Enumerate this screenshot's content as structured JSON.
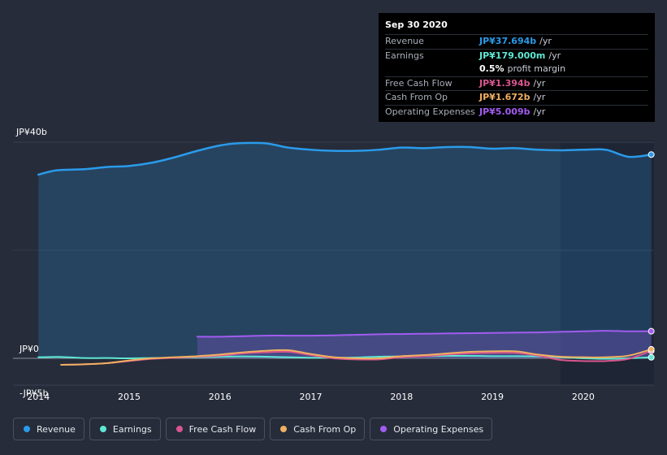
{
  "tooltip": {
    "date": "Sep 30 2020",
    "rows": [
      {
        "label": "Revenue",
        "value": "JP¥37.694b",
        "unit": "/yr",
        "color": "#2a9bea"
      },
      {
        "label": "Earnings",
        "value": "JP¥179.000m",
        "unit": "/yr",
        "color": "#5ee8d4"
      },
      {
        "label": "",
        "value": "0.5%",
        "unit": "profit margin",
        "color": "#ffffff"
      },
      {
        "label": "Free Cash Flow",
        "value": "JP¥1.394b",
        "unit": "/yr",
        "color": "#d9568f"
      },
      {
        "label": "Cash From Op",
        "value": "JP¥1.672b",
        "unit": "/yr",
        "color": "#f0b060"
      },
      {
        "label": "Operating Expenses",
        "value": "JP¥5.009b",
        "unit": "/yr",
        "color": "#a25cf0"
      }
    ]
  },
  "chart_data": {
    "type": "line",
    "title": "",
    "xlabel": "",
    "ylabel": "",
    "ylim": [
      -5,
      40
    ],
    "y_tick_labels": [
      "JP¥40b",
      "JP¥0",
      "-JP¥5b"
    ],
    "x_tick_labels": [
      "2014",
      "2015",
      "2016",
      "2017",
      "2018",
      "2019",
      "2020"
    ],
    "x_ticks": [
      2014,
      2015,
      2016,
      2017,
      2018,
      2019,
      2020
    ],
    "xlim": [
      2013.72,
      2020.78
    ],
    "forecast_start": 2019.75,
    "series": [
      {
        "name": "Revenue",
        "color": "#2a9bea",
        "fill": true,
        "x": [
          2014.0,
          2014.2,
          2014.5,
          2014.75,
          2015.0,
          2015.25,
          2015.5,
          2015.75,
          2016.0,
          2016.2,
          2016.5,
          2016.75,
          2017.0,
          2017.25,
          2017.5,
          2017.75,
          2018.0,
          2018.25,
          2018.5,
          2018.75,
          2019.0,
          2019.25,
          2019.5,
          2019.75,
          2020.0,
          2020.25,
          2020.5,
          2020.75
        ],
        "values": [
          34.0,
          34.8,
          35.0,
          35.4,
          35.6,
          36.2,
          37.2,
          38.4,
          39.4,
          39.8,
          39.8,
          39.0,
          38.6,
          38.4,
          38.4,
          38.6,
          39.0,
          38.9,
          39.1,
          39.1,
          38.8,
          38.9,
          38.6,
          38.5,
          38.6,
          38.6,
          37.3,
          37.7
        ]
      },
      {
        "name": "Earnings",
        "color": "#5ee8d4",
        "fill": false,
        "x": [
          2014.0,
          2014.25,
          2014.5,
          2014.75,
          2015.0,
          2015.25,
          2015.5,
          2015.75,
          2016.0,
          2016.25,
          2016.5,
          2016.75,
          2017.0,
          2017.25,
          2017.5,
          2017.75,
          2018.0,
          2018.25,
          2018.5,
          2018.75,
          2019.0,
          2019.25,
          2019.5,
          2019.75,
          2020.0,
          2020.25,
          2020.5,
          2020.75
        ],
        "values": [
          0.2,
          0.25,
          0.05,
          0.05,
          0.0,
          0.05,
          0.1,
          0.2,
          0.3,
          0.35,
          0.3,
          0.2,
          0.1,
          0.1,
          0.15,
          0.3,
          0.35,
          0.4,
          0.45,
          0.45,
          0.4,
          0.4,
          0.35,
          0.2,
          0.0,
          -0.1,
          0.0,
          0.18
        ]
      },
      {
        "name": "Free Cash Flow",
        "color": "#d9568f",
        "fill": false,
        "x": [
          2014.25,
          2014.5,
          2014.75,
          2015.0,
          2015.25,
          2015.5,
          2015.75,
          2016.0,
          2016.25,
          2016.5,
          2016.75,
          2017.0,
          2017.25,
          2017.5,
          2017.75,
          2018.0,
          2018.25,
          2018.5,
          2018.75,
          2019.0,
          2019.25,
          2019.5,
          2019.75,
          2020.0,
          2020.25,
          2020.5,
          2020.75
        ],
        "values": [
          -1.2,
          -1.1,
          -0.9,
          -0.5,
          -0.1,
          0.1,
          0.3,
          0.5,
          0.9,
          1.1,
          1.2,
          0.6,
          0.0,
          -0.2,
          -0.2,
          0.2,
          0.4,
          0.7,
          0.9,
          1.0,
          1.0,
          0.5,
          -0.3,
          -0.5,
          -0.5,
          -0.1,
          1.39
        ]
      },
      {
        "name": "Cash From Op",
        "color": "#f0b060",
        "fill": false,
        "x": [
          2014.25,
          2014.5,
          2014.75,
          2015.0,
          2015.25,
          2015.5,
          2015.75,
          2016.0,
          2016.25,
          2016.5,
          2016.75,
          2017.0,
          2017.25,
          2017.5,
          2017.75,
          2018.0,
          2018.25,
          2018.5,
          2018.75,
          2019.0,
          2019.25,
          2019.5,
          2019.75,
          2020.0,
          2020.25,
          2020.5,
          2020.75
        ],
        "values": [
          -1.2,
          -1.1,
          -0.9,
          -0.4,
          0.0,
          0.2,
          0.4,
          0.7,
          1.1,
          1.4,
          1.5,
          0.8,
          0.2,
          0.0,
          0.0,
          0.4,
          0.6,
          0.9,
          1.2,
          1.3,
          1.3,
          0.7,
          0.3,
          0.2,
          0.2,
          0.5,
          1.67
        ]
      },
      {
        "name": "Operating Expenses",
        "color": "#a25cf0",
        "fill": true,
        "x": [
          2015.75,
          2016.0,
          2016.25,
          2016.5,
          2016.75,
          2017.0,
          2017.25,
          2017.5,
          2017.75,
          2018.0,
          2018.25,
          2018.5,
          2018.75,
          2019.0,
          2019.25,
          2019.5,
          2019.75,
          2020.0,
          2020.25,
          2020.5,
          2020.75
        ],
        "values": [
          4.0,
          4.0,
          4.1,
          4.2,
          4.2,
          4.2,
          4.25,
          4.35,
          4.45,
          4.5,
          4.55,
          4.6,
          4.65,
          4.7,
          4.75,
          4.8,
          4.9,
          5.0,
          5.1,
          5.0,
          5.01
        ]
      }
    ]
  },
  "legend": {
    "items": [
      {
        "label": "Revenue",
        "color": "#2a9bea"
      },
      {
        "label": "Earnings",
        "color": "#5ee8d4"
      },
      {
        "label": "Free Cash Flow",
        "color": "#d9568f"
      },
      {
        "label": "Cash From Op",
        "color": "#f0b060"
      },
      {
        "label": "Operating Expenses",
        "color": "#a25cf0"
      }
    ]
  }
}
